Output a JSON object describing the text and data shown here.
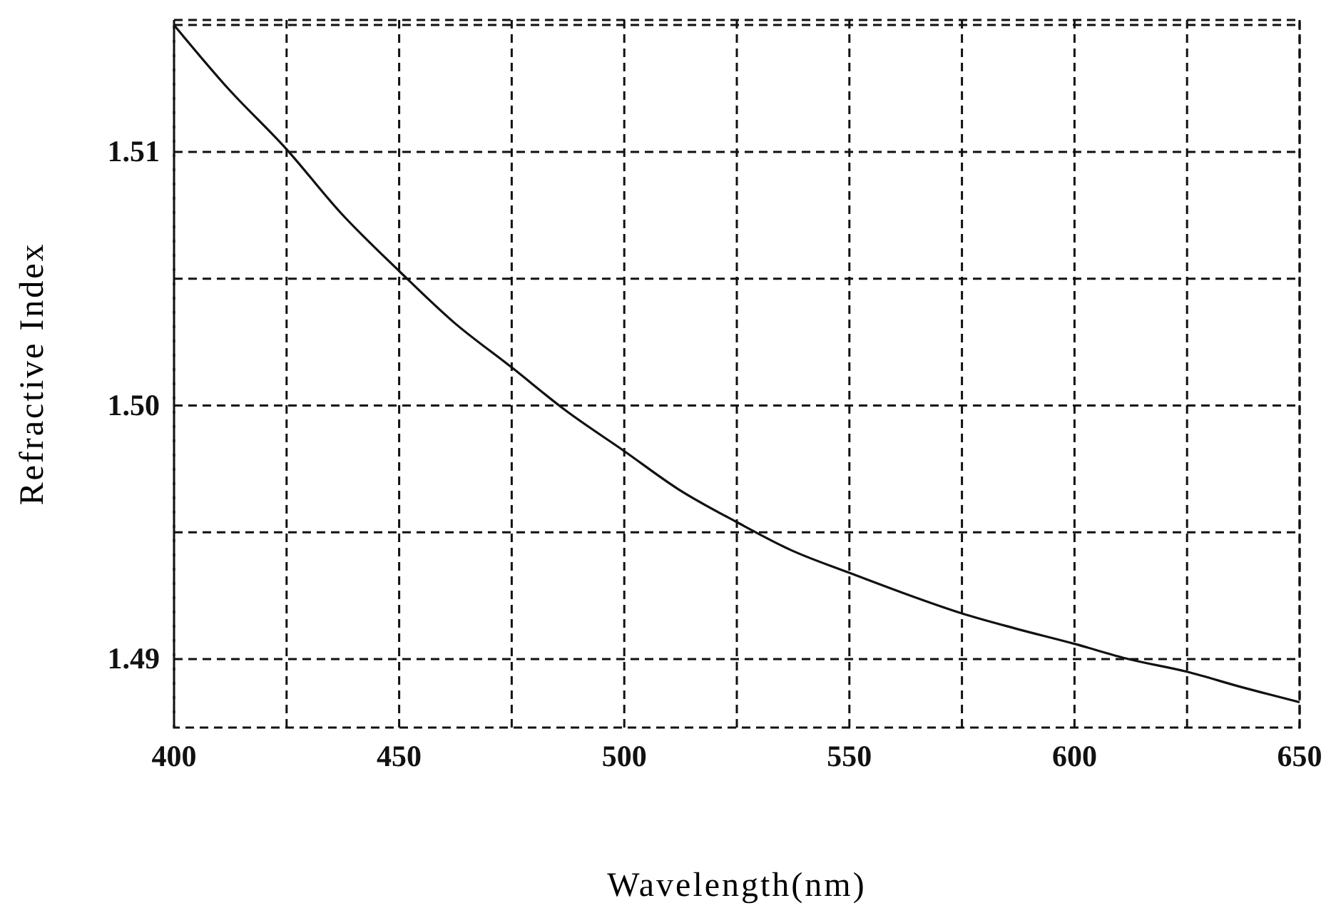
{
  "chart_data": {
    "type": "line",
    "xlabel": "Wavelength(nm)",
    "ylabel": "Refractive Index",
    "x": [
      400,
      412,
      425,
      437,
      450,
      462,
      475,
      487,
      500,
      512,
      525,
      537,
      550,
      562,
      575,
      587,
      600,
      612,
      625,
      637,
      650
    ],
    "series": [
      {
        "color": "#111111",
        "values": [
          1.515,
          1.5125,
          1.5101,
          1.5076,
          1.5053,
          1.5033,
          1.5015,
          1.4998,
          1.4982,
          1.4967,
          1.4954,
          1.4943,
          1.4934,
          1.4926,
          1.4918,
          1.4912,
          1.4906,
          1.49,
          1.4895,
          1.4889,
          1.4883
        ]
      }
    ],
    "xlim": [
      400,
      650
    ],
    "xticks": [
      400,
      {
        "value": 425,
        "label": null
      },
      450,
      {
        "value": 475,
        "label": null
      },
      500,
      {
        "value": 525,
        "label": null
      },
      550,
      {
        "value": 575,
        "label": null
      },
      600,
      {
        "value": 625,
        "label": null
      },
      650
    ],
    "ylim": [
      1.4873,
      1.5152
    ],
    "yticks": [
      {
        "value": 1.49,
        "label": "1.49"
      },
      {
        "value": 1.495,
        "label": null
      },
      {
        "value": 1.5,
        "label": "1.50"
      },
      {
        "value": 1.505,
        "label": null
      },
      {
        "value": 1.51,
        "label": "1.51"
      },
      {
        "value": 1.515,
        "label": null
      }
    ],
    "grid": true,
    "marker": "none",
    "line_style": "solid"
  }
}
